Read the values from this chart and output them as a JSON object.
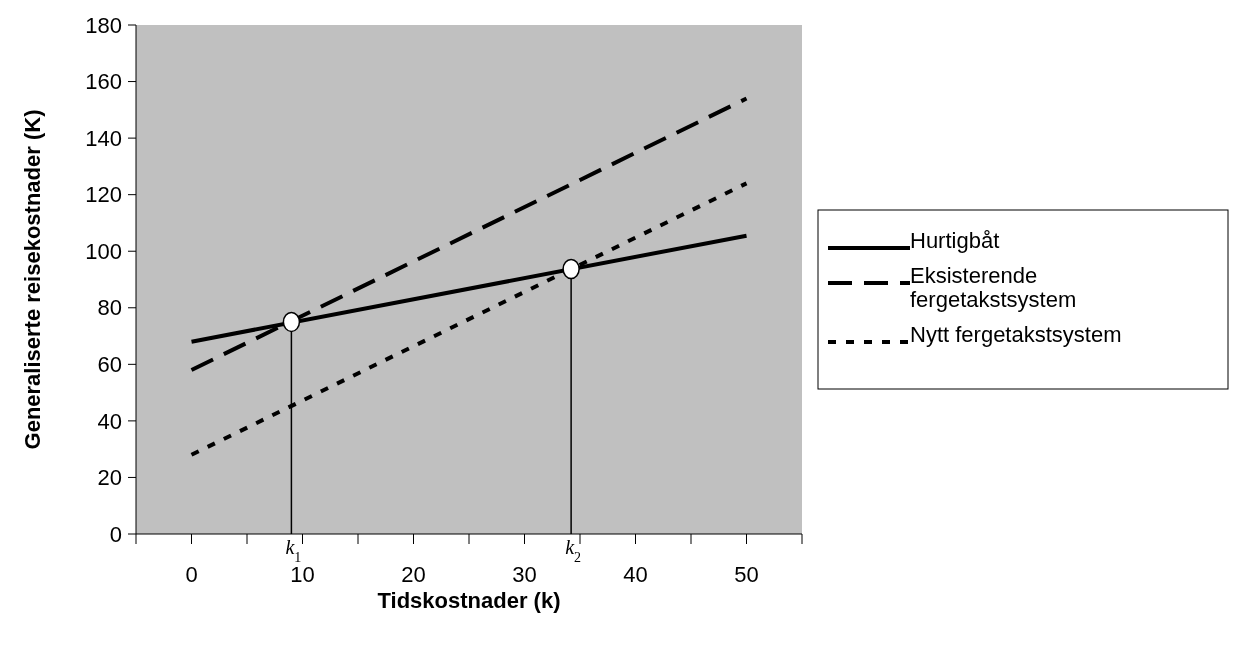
{
  "chart_data": {
    "type": "line",
    "xlabel": "Tidskostnader (k)",
    "ylabel": "Generaliserte reisekostnader (K)",
    "xlim": [
      -5,
      55
    ],
    "xticks": [
      {
        "value": -5,
        "label": null
      },
      0,
      {
        "value": 5,
        "label": null
      },
      10,
      {
        "value": 15,
        "label": null
      },
      20,
      {
        "value": 25,
        "label": null
      },
      30,
      {
        "value": 35,
        "label": null
      },
      40,
      {
        "value": 45,
        "label": null
      },
      50,
      {
        "value": 55,
        "label": null
      }
    ],
    "ylim": [
      0,
      180
    ],
    "yticks": [
      0,
      20,
      40,
      60,
      80,
      100,
      120,
      140,
      160,
      180
    ],
    "grid": false,
    "legend": "right",
    "series": [
      {
        "name": "Hurtigbåt",
        "color": "#000000",
        "line_style": "solid",
        "x": [
          0,
          50
        ],
        "values": [
          68,
          105.5
        ]
      },
      {
        "name": "Eksisterende fergetakstsystem",
        "color": "#000000",
        "line_style": "dashed",
        "x": [
          0,
          50
        ],
        "values": [
          58,
          154
        ]
      },
      {
        "name": "Nytt fergetakstsystem",
        "color": "#000000",
        "line_style": "dotted",
        "x": [
          0,
          50
        ],
        "values": [
          28,
          124
        ]
      },
      {
        "type": "lollipop",
        "color": "#ffffff",
        "marker": "circle",
        "x": [
          9,
          34.2
        ],
        "values": [
          75,
          93.7
        ]
      }
    ],
    "annotations": [
      "k$_{1}$",
      "k$_{2}$"
    ]
  }
}
